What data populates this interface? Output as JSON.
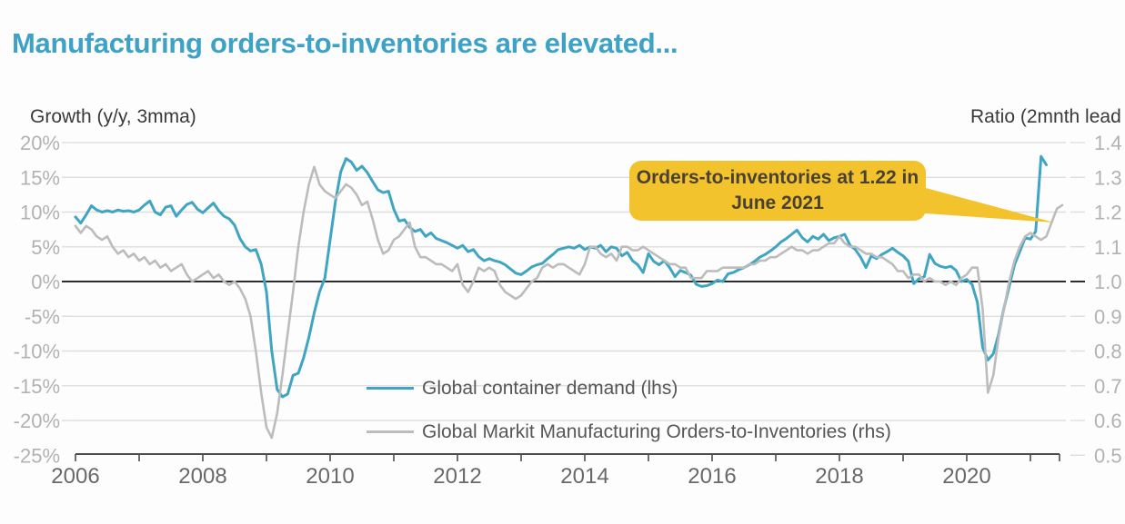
{
  "colors": {
    "title": "#3ea2c6",
    "container_demand_line": "#3fa5c3",
    "orders_to_inventories_line": "#bcbcbc",
    "gridline": "#dedede",
    "zero_line": "#2d2d2d",
    "axis_line": "#4c4c4c",
    "tick_label": "#b2b2b2",
    "year_label": "#696969",
    "callout_bg": "#f3c32e",
    "callout_text": "#4a4134"
  },
  "chart_data": {
    "type": "line",
    "title": "Manufacturing orders-to-inventories are elevated...",
    "left_axis": {
      "label": "Growth (y/y, 3mma)",
      "tick_labels": [
        "20%",
        "15%",
        "10%",
        "5%",
        "0%",
        "-5%",
        "-10%",
        "-15%",
        "-20%",
        "-25%"
      ],
      "tick_values": [
        20,
        15,
        10,
        5,
        0,
        -5,
        -10,
        -15,
        -20,
        -25
      ],
      "range": [
        -25,
        20
      ]
    },
    "right_axis": {
      "label": "Ratio (2mnth lead",
      "tick_labels": [
        "1.4",
        "1.3",
        "1.2",
        "1.1",
        "1.0",
        "0.9",
        "0.8",
        "0.7",
        "0.6",
        "0.5"
      ],
      "tick_values": [
        1.4,
        1.3,
        1.2,
        1.1,
        1.0,
        0.9,
        0.8,
        0.7,
        0.6,
        0.5
      ],
      "range": [
        0.5,
        1.4
      ]
    },
    "x_axis": {
      "tick_years": [
        2006,
        2007,
        2008,
        2009,
        2010,
        2011,
        2012,
        2013,
        2014,
        2015,
        2016,
        2017,
        2018,
        2019,
        2020,
        2021
      ],
      "label_years": [
        "2006",
        "2008",
        "2010",
        "2012",
        "2014",
        "2016",
        "2018",
        "2020"
      ],
      "range": [
        2006,
        2021.55
      ],
      "grid": "horizontal-only"
    },
    "legend_position": "inside-bottom-center",
    "series": [
      {
        "name": "Global container demand (lhs)",
        "axis": "left",
        "unit": "% y/y, 3mma",
        "color": "#3fa5c3",
        "width": 3,
        "x_start": 2006.0,
        "x_step_years": 0.0833333,
        "values": [
          9.3,
          8.4,
          9.6,
          10.9,
          10.3,
          10.0,
          10.2,
          10.0,
          10.3,
          10.1,
          10.2,
          10.0,
          10.3,
          11.0,
          11.6,
          10.0,
          9.6,
          10.7,
          10.9,
          9.4,
          10.3,
          11.1,
          11.4,
          10.4,
          9.9,
          10.6,
          11.3,
          10.2,
          9.4,
          9.0,
          8.1,
          6.2,
          5.0,
          4.4,
          4.6,
          2.5,
          -1.5,
          -10.0,
          -15.5,
          -16.6,
          -16.2,
          -13.5,
          -13.2,
          -11.0,
          -8.0,
          -4.5,
          -1.5,
          0.5,
          6.0,
          11.5,
          15.8,
          17.7,
          17.2,
          16.0,
          16.6,
          15.7,
          14.4,
          13.2,
          12.8,
          13.0,
          10.4,
          8.7,
          8.9,
          7.8,
          7.2,
          7.5,
          6.5,
          7.0,
          6.2,
          5.9,
          5.6,
          5.2,
          4.8,
          5.2,
          4.3,
          4.6,
          3.6,
          3.0,
          3.3,
          3.0,
          2.8,
          2.4,
          1.8,
          1.2,
          1.0,
          1.5,
          2.1,
          2.4,
          2.6,
          3.3,
          3.9,
          4.6,
          4.8,
          5.0,
          4.8,
          5.2,
          4.6,
          5.0,
          4.8,
          5.2,
          4.3,
          5.0,
          4.8,
          3.7,
          4.2,
          3.0,
          2.4,
          1.3,
          4.0,
          2.9,
          2.4,
          3.0,
          2.0,
          0.7,
          1.6,
          1.3,
          0.9,
          -0.4,
          -0.7,
          -0.6,
          -0.3,
          0.2,
          0.0,
          1.1,
          1.3,
          1.7,
          2.0,
          2.4,
          2.9,
          3.5,
          3.9,
          4.4,
          5.0,
          5.7,
          6.2,
          6.8,
          7.4,
          6.3,
          5.7,
          6.5,
          6.1,
          6.8,
          5.9,
          6.3,
          6.5,
          6.8,
          5.2,
          4.6,
          3.5,
          2.0,
          3.7,
          3.3,
          3.9,
          4.3,
          4.8,
          4.2,
          3.7,
          2.9,
          -0.3,
          0.4,
          0.7,
          3.9,
          2.6,
          2.2,
          2.0,
          2.2,
          1.6,
          0.0,
          0.3,
          -0.4,
          -3.0,
          -9.5,
          -11.3,
          -10.4,
          -7.6,
          -3.9,
          -0.7,
          2.4,
          4.3,
          6.3,
          6.1,
          7.2,
          18.0,
          16.8
        ]
      },
      {
        "name": "Global Markit Manufacturing Orders-to-Inventories (rhs)",
        "axis": "right",
        "unit": "ratio, 2-month lead",
        "color": "#bcbcbc",
        "width": 2.6,
        "x_start": 2006.0,
        "x_step_years": 0.0833333,
        "values": [
          1.16,
          1.14,
          1.16,
          1.15,
          1.13,
          1.12,
          1.13,
          1.1,
          1.08,
          1.09,
          1.07,
          1.08,
          1.06,
          1.07,
          1.05,
          1.06,
          1.04,
          1.05,
          1.03,
          1.04,
          1.05,
          1.02,
          1.0,
          1.01,
          1.02,
          1.03,
          1.01,
          1.02,
          1.0,
          0.99,
          1.0,
          0.98,
          0.95,
          0.9,
          0.8,
          0.68,
          0.58,
          0.55,
          0.62,
          0.73,
          0.85,
          0.97,
          1.1,
          1.2,
          1.28,
          1.33,
          1.28,
          1.26,
          1.25,
          1.24,
          1.26,
          1.28,
          1.27,
          1.25,
          1.22,
          1.23,
          1.18,
          1.12,
          1.08,
          1.09,
          1.12,
          1.13,
          1.15,
          1.17,
          1.1,
          1.07,
          1.07,
          1.06,
          1.05,
          1.05,
          1.04,
          1.03,
          1.05,
          0.99,
          0.97,
          1.0,
          1.04,
          1.03,
          1.04,
          1.03,
          0.99,
          0.97,
          0.96,
          0.95,
          0.96,
          0.98,
          1.0,
          1.01,
          1.04,
          1.05,
          1.04,
          1.05,
          1.05,
          1.04,
          1.03,
          1.02,
          1.05,
          1.1,
          1.1,
          1.08,
          1.07,
          1.08,
          1.06,
          1.1,
          1.1,
          1.09,
          1.09,
          1.1,
          1.09,
          1.08,
          1.07,
          1.06,
          1.05,
          1.05,
          1.04,
          1.04,
          1.01,
          1.01,
          1.01,
          1.03,
          1.03,
          1.03,
          1.04,
          1.04,
          1.04,
          1.04,
          1.04,
          1.05,
          1.05,
          1.06,
          1.06,
          1.07,
          1.07,
          1.08,
          1.09,
          1.1,
          1.09,
          1.09,
          1.08,
          1.09,
          1.09,
          1.1,
          1.11,
          1.11,
          1.13,
          1.11,
          1.1,
          1.1,
          1.09,
          1.08,
          1.08,
          1.07,
          1.07,
          1.06,
          1.05,
          1.03,
          1.03,
          1.01,
          1.02,
          1.02,
          1.0,
          1.01,
          1.0,
          1.0,
          0.99,
          1.0,
          0.99,
          1.01,
          1.02,
          1.04,
          1.04,
          0.92,
          0.68,
          0.73,
          0.84,
          0.92,
          1.0,
          1.06,
          1.1,
          1.13,
          1.14,
          1.13,
          1.12,
          1.13,
          1.17,
          1.21,
          1.22
        ]
      }
    ],
    "legend": [
      {
        "label": "Global container demand (lhs)"
      },
      {
        "label": "Global Markit Manufacturing Orders-to-Inventories (rhs)"
      }
    ],
    "annotation": {
      "line1": "Orders-to-inventories at 1.22 in",
      "line2": "June 2021",
      "highlight_value": 1.22,
      "points_to": {
        "x_year": 2021.37,
        "y_right": 1.17
      }
    }
  }
}
